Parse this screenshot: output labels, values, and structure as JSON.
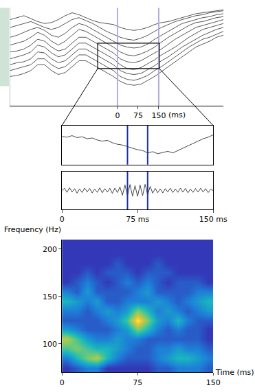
{
  "chart_data": [
    {
      "type": "line",
      "x": [
        -390,
        -365,
        -340,
        -315,
        -290,
        -265,
        -240,
        -215,
        -190,
        -165,
        -140,
        -115,
        -90,
        -65,
        -40,
        -15,
        10,
        35,
        60,
        85,
        110,
        135,
        160,
        185,
        210,
        235,
        260,
        285,
        310,
        335,
        360,
        385
      ],
      "series": [
        {
          "color": "#555555",
          "values": [
            88,
            90,
            92,
            89,
            86,
            84,
            85,
            88,
            92,
            95,
            93,
            90,
            87,
            85,
            84,
            83,
            80,
            78,
            77,
            78,
            80,
            83,
            85,
            86,
            88,
            90,
            92,
            94,
            95,
            96,
            97,
            98
          ]
        },
        {
          "color": "#555555",
          "values": [
            80,
            82,
            84,
            86,
            83,
            80,
            78,
            80,
            84,
            88,
            90,
            87,
            84,
            80,
            76,
            73,
            70,
            68,
            67,
            69,
            72,
            76,
            80,
            83,
            86,
            88,
            90,
            92,
            93,
            95,
            96,
            97
          ]
        },
        {
          "color": "#555555",
          "values": [
            70,
            72,
            75,
            78,
            80,
            77,
            72,
            70,
            74,
            80,
            84,
            82,
            78,
            74,
            70,
            66,
            62,
            60,
            59,
            60,
            63,
            68,
            72,
            76,
            80,
            84,
            86,
            88,
            90,
            91,
            93,
            94
          ]
        },
        {
          "color": "#555555",
          "values": [
            62,
            64,
            66,
            70,
            75,
            72,
            66,
            62,
            66,
            72,
            78,
            76,
            72,
            68,
            64,
            60,
            55,
            52,
            51,
            53,
            56,
            60,
            65,
            70,
            74,
            78,
            82,
            85,
            86,
            88,
            90,
            91
          ]
        },
        {
          "color": "#555555",
          "values": [
            55,
            56,
            58,
            62,
            68,
            66,
            60,
            56,
            58,
            64,
            70,
            70,
            66,
            62,
            58,
            54,
            48,
            45,
            44,
            46,
            50,
            54,
            58,
            63,
            68,
            72,
            76,
            80,
            82,
            84,
            86,
            88
          ]
        },
        {
          "color": "#555555",
          "values": [
            48,
            50,
            52,
            55,
            62,
            60,
            54,
            50,
            52,
            58,
            64,
            64,
            60,
            56,
            52,
            48,
            42,
            38,
            37,
            39,
            43,
            47,
            52,
            56,
            60,
            65,
            70,
            74,
            78,
            80,
            82,
            84
          ]
        },
        {
          "color": "#555555",
          "values": [
            42,
            44,
            45,
            48,
            55,
            54,
            48,
            44,
            46,
            52,
            58,
            58,
            54,
            50,
            46,
            42,
            36,
            33,
            32,
            33,
            37,
            41,
            46,
            50,
            55,
            60,
            64,
            68,
            72,
            75,
            78,
            80
          ]
        },
        {
          "color": "#555555",
          "values": [
            36,
            38,
            40,
            42,
            48,
            48,
            42,
            38,
            40,
            46,
            52,
            52,
            48,
            44,
            40,
            36,
            30,
            27,
            26,
            28,
            31,
            36,
            40,
            45,
            50,
            55,
            60,
            64,
            68,
            70,
            73,
            76
          ]
        },
        {
          "color": "#555555",
          "values": [
            30,
            31,
            33,
            36,
            42,
            42,
            36,
            32,
            34,
            40,
            46,
            46,
            42,
            38,
            34,
            30,
            25,
            22,
            21,
            22,
            26,
            30,
            35,
            40,
            45,
            50,
            55,
            60,
            63,
            66,
            70,
            72
          ]
        }
      ],
      "xlim": [
        -390,
        385
      ],
      "xticks": [
        0,
        75,
        150
      ],
      "x_label": "(ms)",
      "ylim": [
        0,
        100
      ],
      "tick_labels": "x",
      "grid": false,
      "vlines": [
        0,
        150
      ],
      "zoom_box": {
        "x": [
          -72,
          152
        ],
        "y": [
          38,
          64
        ]
      }
    },
    {
      "type": "line",
      "x": [
        0,
        5,
        10,
        15,
        20,
        25,
        30,
        35,
        40,
        45,
        50,
        55,
        60,
        65,
        70,
        75,
        80,
        85,
        90,
        95,
        100,
        105,
        110,
        115,
        120,
        125,
        130,
        135,
        140,
        145,
        150
      ],
      "values": [
        72,
        70,
        74,
        69,
        71,
        66,
        68,
        63,
        60,
        62,
        56,
        52,
        50,
        46,
        42,
        38,
        36,
        30,
        33,
        28,
        31,
        34,
        30,
        36,
        42,
        48,
        55,
        60,
        66,
        70,
        76
      ],
      "color": "#444444",
      "xlim": [
        0,
        150
      ],
      "ylim": [
        0,
        100
      ],
      "tick_labels": false,
      "grid": false,
      "vlines": [
        65,
        85
      ]
    },
    {
      "type": "line",
      "x": [
        0,
        2.5,
        5,
        7.5,
        10,
        12.5,
        15,
        17.5,
        20,
        22.5,
        25,
        27.5,
        30,
        32.5,
        35,
        37.5,
        40,
        42.5,
        45,
        47.5,
        50,
        52.5,
        55,
        57.5,
        60,
        62.5,
        65,
        67.5,
        70,
        72.5,
        75,
        77.5,
        80,
        82.5,
        85,
        87.5,
        90,
        92.5,
        95,
        97.5,
        100,
        102.5,
        105,
        107.5,
        110,
        112.5,
        115,
        117.5,
        120,
        122.5,
        125,
        127.5,
        130,
        132.5,
        135,
        137.5,
        140,
        142.5,
        145,
        147.5,
        150
      ],
      "values": [
        0,
        1.2,
        -1,
        1.5,
        -0.8,
        1,
        -1.4,
        0.9,
        -1.1,
        1.3,
        -0.7,
        1.1,
        -1.3,
        0.8,
        -1,
        1.4,
        -1.2,
        1,
        -0.9,
        1.2,
        -1.5,
        1.3,
        -1.1,
        1.9,
        -2.5,
        3,
        -2.8,
        3.2,
        -3,
        2.6,
        -3.1,
        2.9,
        -2.7,
        3.3,
        -2.4,
        2.2,
        -1.4,
        1.1,
        -1.2,
        0.9,
        -1.3,
        1,
        -0.8,
        1.2,
        -1.1,
        0.9,
        -1,
        1.3,
        -0.9,
        1.1,
        -1.2,
        0.8,
        -1,
        1.1,
        -0.9,
        1.2,
        -0.8,
        1,
        -1.1,
        0.7,
        0
      ],
      "color": "#444444",
      "xlim": [
        0,
        150
      ],
      "xticks": [
        0,
        {
          "value": 75,
          "label": "75 ms"
        },
        {
          "value": 150,
          "label": "150 ms"
        }
      ],
      "ylim": [
        -10,
        10
      ],
      "tick_labels": "x",
      "grid": false,
      "vlines": [
        65,
        85
      ]
    },
    {
      "type": "heatmap",
      "x": [
        5,
        15,
        25,
        35,
        45,
        55,
        65,
        75,
        85,
        95,
        105,
        115,
        125,
        135,
        145
      ],
      "y": [
        75,
        85,
        95,
        105,
        115,
        125,
        135,
        145,
        155,
        165,
        175,
        185,
        195,
        205
      ],
      "z": [
        [
          1,
          2,
          3,
          3,
          1,
          1,
          1,
          1,
          1,
          2,
          2,
          3,
          3,
          3,
          2
        ],
        [
          3,
          5,
          7,
          8,
          5,
          3,
          2,
          2,
          2,
          3,
          4,
          5,
          5,
          4,
          3
        ],
        [
          6,
          7,
          6,
          5,
          5,
          4,
          3,
          2,
          2,
          3,
          3,
          4,
          3,
          3,
          2
        ],
        [
          8,
          6,
          4,
          3,
          3,
          4,
          3,
          3,
          2,
          2,
          2,
          2,
          2,
          2,
          1
        ],
        [
          4,
          3,
          2,
          2,
          2,
          3,
          4,
          7,
          5,
          3,
          2,
          3,
          2,
          2,
          1
        ],
        [
          2,
          2,
          2,
          2,
          3,
          4,
          6,
          10,
          7,
          4,
          3,
          5,
          3,
          2,
          2
        ],
        [
          3,
          3,
          2,
          3,
          4,
          3,
          4,
          7,
          5,
          3,
          4,
          3,
          2,
          3,
          4
        ],
        [
          5,
          4,
          3,
          4,
          2,
          2,
          3,
          3,
          3,
          4,
          3,
          2,
          3,
          4,
          5
        ],
        [
          3,
          2,
          4,
          2,
          2,
          2,
          2,
          3,
          4,
          2,
          2,
          2,
          2,
          3,
          3
        ],
        [
          1,
          2,
          3,
          2,
          1,
          2,
          3,
          2,
          3,
          2,
          1,
          2,
          2,
          2,
          1
        ],
        [
          1,
          1,
          2,
          1,
          2,
          2,
          2,
          1,
          2,
          2,
          2,
          1,
          1,
          1,
          1
        ],
        [
          1,
          1,
          1,
          1,
          1,
          2,
          1,
          1,
          1,
          2,
          1,
          1,
          1,
          1,
          1
        ],
        [
          1,
          1,
          1,
          1,
          1,
          1,
          1,
          1,
          1,
          1,
          1,
          1,
          1,
          1,
          1
        ],
        [
          1,
          1,
          1,
          1,
          1,
          1,
          1,
          1,
          1,
          1,
          1,
          1,
          1,
          1,
          1
        ]
      ],
      "zlim": [
        0,
        10
      ],
      "xlim": [
        0,
        150
      ],
      "xticks": [
        0,
        75,
        150
      ],
      "x_label": "Time (ms)",
      "ylim": [
        70,
        210
      ],
      "yticks": [
        100,
        150,
        200
      ],
      "y_label": "Frequency (Hz)",
      "grid": false
    }
  ]
}
